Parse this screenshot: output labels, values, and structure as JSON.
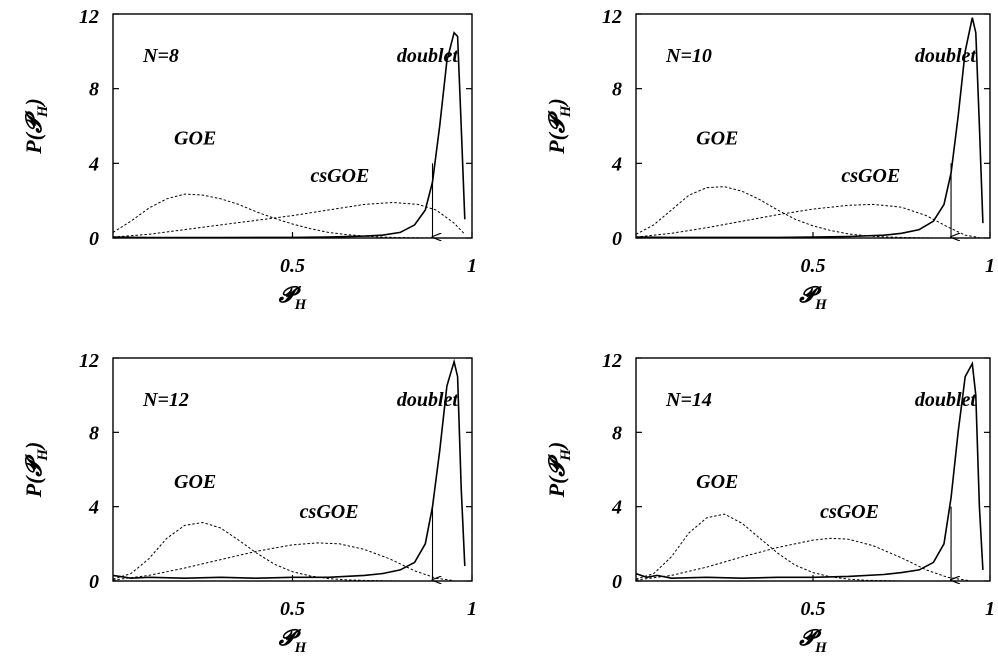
{
  "chart_data": [
    {
      "type": "line",
      "xlabel": "𝓟",
      "xlabel_sub": "H",
      "ylabel": "P(𝓟",
      "ylabel_sub": "H",
      "ylabel_close": ")",
      "xlim": [
        0,
        1
      ],
      "ylim": [
        0,
        12
      ],
      "xticks": [
        "0.5",
        "1"
      ],
      "yticks": [
        "0",
        "4",
        "8",
        "12"
      ],
      "grid": false,
      "annotations": {
        "n": "N=8",
        "goe": "GOE",
        "csgoe": "csGOE",
        "doublet": "doublet"
      },
      "arrow_x": 0.89,
      "series": [
        {
          "label": "GOE",
          "style": "dotted",
          "x": [
            0.0,
            0.05,
            0.1,
            0.15,
            0.2,
            0.25,
            0.3,
            0.35,
            0.4,
            0.45,
            0.5,
            0.55,
            0.6,
            0.65,
            0.7,
            0.75,
            0.8,
            0.85,
            0.9,
            0.95,
            0.98
          ],
          "y": [
            0.3,
            0.9,
            1.6,
            2.1,
            2.35,
            2.3,
            2.1,
            1.8,
            1.4,
            1.05,
            0.75,
            0.5,
            0.3,
            0.18,
            0.1,
            0.05,
            0.02,
            0.01,
            0.0,
            0.0,
            0.0
          ]
        },
        {
          "label": "csGOE",
          "style": "dotted",
          "x": [
            0.0,
            0.1,
            0.2,
            0.3,
            0.4,
            0.5,
            0.6,
            0.7,
            0.78,
            0.85,
            0.9,
            0.95,
            0.98
          ],
          "y": [
            0.05,
            0.2,
            0.45,
            0.7,
            0.95,
            1.2,
            1.5,
            1.8,
            1.9,
            1.8,
            1.5,
            0.8,
            0.2
          ]
        },
        {
          "label": "doublet",
          "style": "solid",
          "x": [
            0.0,
            0.1,
            0.2,
            0.3,
            0.4,
            0.5,
            0.6,
            0.7,
            0.75,
            0.8,
            0.84,
            0.87,
            0.89,
            0.91,
            0.93,
            0.95,
            0.96,
            0.97,
            0.98
          ],
          "y": [
            0.05,
            0.02,
            0.02,
            0.02,
            0.03,
            0.03,
            0.05,
            0.1,
            0.15,
            0.3,
            0.7,
            1.5,
            3.0,
            6.0,
            9.5,
            11.0,
            10.8,
            6.0,
            1.0
          ]
        }
      ]
    },
    {
      "type": "line",
      "xlabel": "𝓟",
      "xlabel_sub": "H",
      "ylabel": "P(𝓟",
      "ylabel_sub": "H",
      "ylabel_close": ")",
      "xlim": [
        0,
        1
      ],
      "ylim": [
        0,
        12
      ],
      "xticks": [
        "0.5",
        "1"
      ],
      "yticks": [
        "0",
        "4",
        "8",
        "12"
      ],
      "grid": false,
      "annotations": {
        "n": "N=10",
        "goe": "GOE",
        "csgoe": "csGOE",
        "doublet": "doublet"
      },
      "arrow_x": 0.89,
      "series": [
        {
          "label": "GOE",
          "style": "dotted",
          "x": [
            0.0,
            0.05,
            0.1,
            0.15,
            0.2,
            0.25,
            0.3,
            0.35,
            0.4,
            0.45,
            0.5,
            0.55,
            0.6,
            0.65,
            0.7,
            0.75,
            0.8,
            0.85,
            0.9,
            0.95,
            0.98
          ],
          "y": [
            0.2,
            0.7,
            1.5,
            2.3,
            2.7,
            2.75,
            2.5,
            2.05,
            1.5,
            1.0,
            0.65,
            0.4,
            0.22,
            0.12,
            0.06,
            0.03,
            0.01,
            0.0,
            0.0,
            0.0,
            0.0
          ]
        },
        {
          "label": "csGOE",
          "style": "dotted",
          "x": [
            0.0,
            0.1,
            0.2,
            0.3,
            0.4,
            0.5,
            0.6,
            0.67,
            0.75,
            0.82,
            0.88,
            0.93,
            0.97
          ],
          "y": [
            0.05,
            0.25,
            0.55,
            0.9,
            1.25,
            1.55,
            1.75,
            1.8,
            1.65,
            1.2,
            0.6,
            0.15,
            0.02
          ]
        },
        {
          "label": "doublet",
          "style": "solid",
          "x": [
            0.0,
            0.1,
            0.2,
            0.3,
            0.4,
            0.5,
            0.6,
            0.7,
            0.75,
            0.8,
            0.84,
            0.87,
            0.89,
            0.91,
            0.93,
            0.95,
            0.96,
            0.97,
            0.98
          ],
          "y": [
            0.05,
            0.03,
            0.03,
            0.03,
            0.03,
            0.05,
            0.08,
            0.15,
            0.25,
            0.45,
            0.9,
            1.8,
            3.5,
            6.5,
            10.0,
            11.8,
            11.0,
            6.0,
            0.8
          ]
        }
      ]
    },
    {
      "type": "line",
      "xlabel": "𝓟",
      "xlabel_sub": "H",
      "ylabel": "P(𝓟",
      "ylabel_sub": "H",
      "ylabel_close": ")",
      "xlim": [
        0,
        1
      ],
      "ylim": [
        0,
        12
      ],
      "xticks": [
        "0.5",
        "1"
      ],
      "yticks": [
        "0",
        "4",
        "8",
        "12"
      ],
      "grid": false,
      "annotations": {
        "n": "N=12",
        "goe": "GOE",
        "csgoe": "csGOE",
        "doublet": "doublet"
      },
      "arrow_x": 0.89,
      "series": [
        {
          "label": "GOE",
          "style": "dotted",
          "x": [
            0.0,
            0.05,
            0.1,
            0.15,
            0.2,
            0.25,
            0.3,
            0.35,
            0.4,
            0.45,
            0.5,
            0.55,
            0.6,
            0.65,
            0.7,
            0.75,
            0.8,
            0.85,
            0.9,
            0.95,
            0.98
          ],
          "y": [
            0.1,
            0.4,
            1.2,
            2.3,
            3.0,
            3.15,
            2.85,
            2.2,
            1.5,
            0.9,
            0.5,
            0.27,
            0.13,
            0.06,
            0.03,
            0.01,
            0.0,
            0.0,
            0.0,
            0.0,
            0.0
          ]
        },
        {
          "label": "csGOE",
          "style": "dotted",
          "x": [
            0.0,
            0.1,
            0.2,
            0.3,
            0.4,
            0.5,
            0.57,
            0.63,
            0.7,
            0.77,
            0.84,
            0.9,
            0.95
          ],
          "y": [
            0.05,
            0.3,
            0.7,
            1.15,
            1.6,
            1.95,
            2.05,
            2.0,
            1.7,
            1.2,
            0.55,
            0.15,
            0.02
          ]
        },
        {
          "label": "doublet",
          "style": "solid",
          "x": [
            0.0,
            0.05,
            0.1,
            0.2,
            0.3,
            0.4,
            0.5,
            0.6,
            0.7,
            0.75,
            0.8,
            0.84,
            0.87,
            0.89,
            0.91,
            0.93,
            0.95,
            0.96,
            0.97,
            0.98
          ],
          "y": [
            0.3,
            0.15,
            0.2,
            0.15,
            0.2,
            0.15,
            0.2,
            0.2,
            0.3,
            0.4,
            0.6,
            1.0,
            2.0,
            4.0,
            7.0,
            10.5,
            11.8,
            11.0,
            5.0,
            0.8
          ]
        }
      ]
    },
    {
      "type": "line",
      "xlabel": "𝓟",
      "xlabel_sub": "H",
      "ylabel": "P(𝓟",
      "ylabel_sub": "H",
      "ylabel_close": ")",
      "xlim": [
        0,
        1
      ],
      "ylim": [
        0,
        12
      ],
      "xticks": [
        "0.5",
        "1"
      ],
      "yticks": [
        "0",
        "4",
        "8",
        "12"
      ],
      "grid": false,
      "annotations": {
        "n": "N=14",
        "goe": "GOE",
        "csgoe": "csGOE",
        "doublet": "doublet"
      },
      "arrow_x": 0.89,
      "series": [
        {
          "label": "GOE",
          "style": "dotted",
          "x": [
            0.0,
            0.05,
            0.1,
            0.15,
            0.2,
            0.25,
            0.3,
            0.35,
            0.4,
            0.45,
            0.5,
            0.55,
            0.6,
            0.65,
            0.7,
            0.75,
            0.8,
            0.85,
            0.9,
            0.95,
            0.98
          ],
          "y": [
            0.1,
            0.4,
            1.3,
            2.6,
            3.4,
            3.6,
            3.1,
            2.3,
            1.5,
            0.85,
            0.45,
            0.22,
            0.1,
            0.04,
            0.02,
            0.0,
            0.0,
            0.0,
            0.0,
            0.0,
            0.0
          ]
        },
        {
          "label": "csGOE",
          "style": "dotted",
          "x": [
            0.0,
            0.1,
            0.2,
            0.3,
            0.4,
            0.5,
            0.55,
            0.6,
            0.67,
            0.75,
            0.82,
            0.88,
            0.94
          ],
          "y": [
            0.05,
            0.3,
            0.75,
            1.3,
            1.8,
            2.2,
            2.3,
            2.25,
            1.9,
            1.25,
            0.6,
            0.2,
            0.02
          ]
        },
        {
          "label": "doublet",
          "style": "solid",
          "x": [
            0.0,
            0.03,
            0.06,
            0.1,
            0.2,
            0.3,
            0.4,
            0.5,
            0.6,
            0.7,
            0.75,
            0.8,
            0.84,
            0.87,
            0.89,
            0.91,
            0.93,
            0.95,
            0.96,
            0.97,
            0.98
          ],
          "y": [
            0.4,
            0.2,
            0.3,
            0.15,
            0.2,
            0.15,
            0.2,
            0.2,
            0.25,
            0.35,
            0.45,
            0.6,
            1.0,
            2.0,
            4.5,
            8.0,
            11.0,
            11.7,
            10.0,
            4.0,
            0.6
          ]
        }
      ]
    }
  ]
}
